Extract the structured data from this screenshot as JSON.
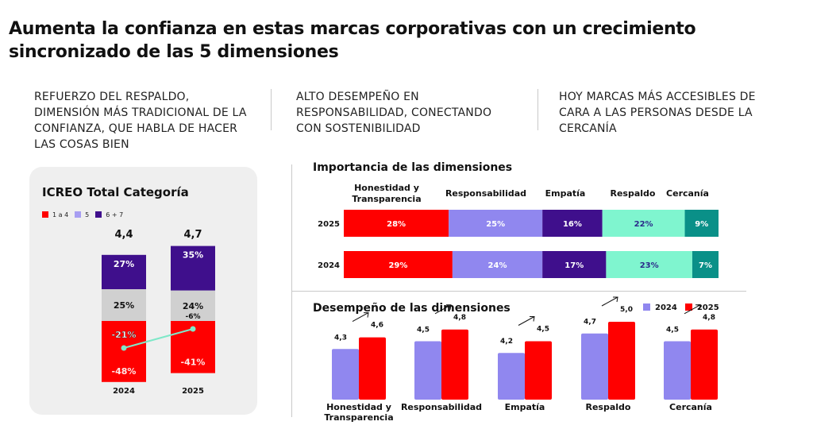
{
  "page": {
    "title": "Aumenta la confianza en estas marcas corporativas con un crecimiento sincronizado de las 5 dimensiones"
  },
  "insights": [
    "REFUERZO DEL RESPALDO, DIMENSIÓN MÁS TRADICIONAL DE LA CONFIANZA, QUE HABLA DE HACER LAS COSAS BIEN",
    "ALTO DESEMPEÑO EN RESPONSABILIDAD, CONECTANDO CON SOSTENIBILIDAD",
    "HOY MARCAS MÁS ACCESIBLES DE CARA A LAS PERSONAS DESDE LA CERCANÍA"
  ],
  "colors": {
    "red": "#ff0000",
    "lavender": "#9087ef",
    "purple": "#3f0f8c",
    "mint": "#7ff5cf",
    "teal": "#0a9088",
    "gray": "#d0d0d0",
    "card_bg": "#efefef",
    "line_green": "#7ee8c8"
  },
  "chart_data": [
    {
      "type": "bar",
      "stacked": true,
      "title": "ICREO Total Categoría",
      "legend": [
        {
          "label": "1 a 4",
          "color": "#ff0000"
        },
        {
          "label": "5",
          "color": "#a79ef2"
        },
        {
          "label": "6 + 7",
          "color": "#3f0f8c"
        }
      ],
      "categories": [
        "2024",
        "2025"
      ],
      "totals": [
        "4,4",
        "4,7"
      ],
      "series": [
        {
          "name": "1 a 4",
          "values": [
            -48,
            -41
          ],
          "labels": [
            "-48%",
            "-41%"
          ],
          "color": "#ff0000"
        },
        {
          "name": "5",
          "values": [
            25,
            24
          ],
          "labels": [
            "25%",
            "24%"
          ],
          "color": "#d0d0d0"
        },
        {
          "name": "6 + 7",
          "values": [
            27,
            35
          ],
          "labels": [
            "27%",
            "35%"
          ],
          "color": "#3f0f8c"
        }
      ],
      "net_line": {
        "values": [
          -21,
          -6
        ],
        "labels": [
          "-21%",
          "-6%"
        ],
        "color": "#7ee8c8"
      }
    },
    {
      "type": "bar",
      "orientation": "horizontal",
      "stacked": true,
      "title": "Importancia de las dimensiones",
      "categories": [
        "2025",
        "2024"
      ],
      "segments": [
        "Honestidad y Transparencia",
        "Responsabilidad",
        "Empatía",
        "Respaldo",
        "Cercanía"
      ],
      "segment_colors": [
        "#ff0000",
        "#9087ef",
        "#3f0f8c",
        "#7ff5cf",
        "#0a9088"
      ],
      "segment_text_colors": [
        "#ffffff",
        "#ffffff",
        "#ffffff",
        "#2a2a8a",
        "#ffffff"
      ],
      "series": [
        {
          "name": "2025",
          "values": [
            28,
            25,
            16,
            22,
            9
          ]
        },
        {
          "name": "2024",
          "values": [
            29,
            24,
            17,
            23,
            7
          ]
        }
      ]
    },
    {
      "type": "bar",
      "title": "Desempeño de las dimensiones",
      "categories": [
        "Honestidad y Transparencia",
        "Responsabilidad",
        "Empatía",
        "Respaldo",
        "Cercanía"
      ],
      "series": [
        {
          "name": "2024",
          "values": [
            4.3,
            4.5,
            4.2,
            4.7,
            4.5
          ],
          "labels": [
            "4,3",
            "4,5",
            "4,2",
            "4,7",
            "4,5"
          ],
          "color": "#9087ef"
        },
        {
          "name": "2025",
          "values": [
            4.6,
            4.8,
            4.5,
            5.0,
            4.8
          ],
          "labels": [
            "4,6",
            "4,8",
            "4,5",
            "5,0",
            "4,8"
          ],
          "color": "#ff0000"
        }
      ],
      "legend": "top-right",
      "trend_arrows": true
    }
  ]
}
